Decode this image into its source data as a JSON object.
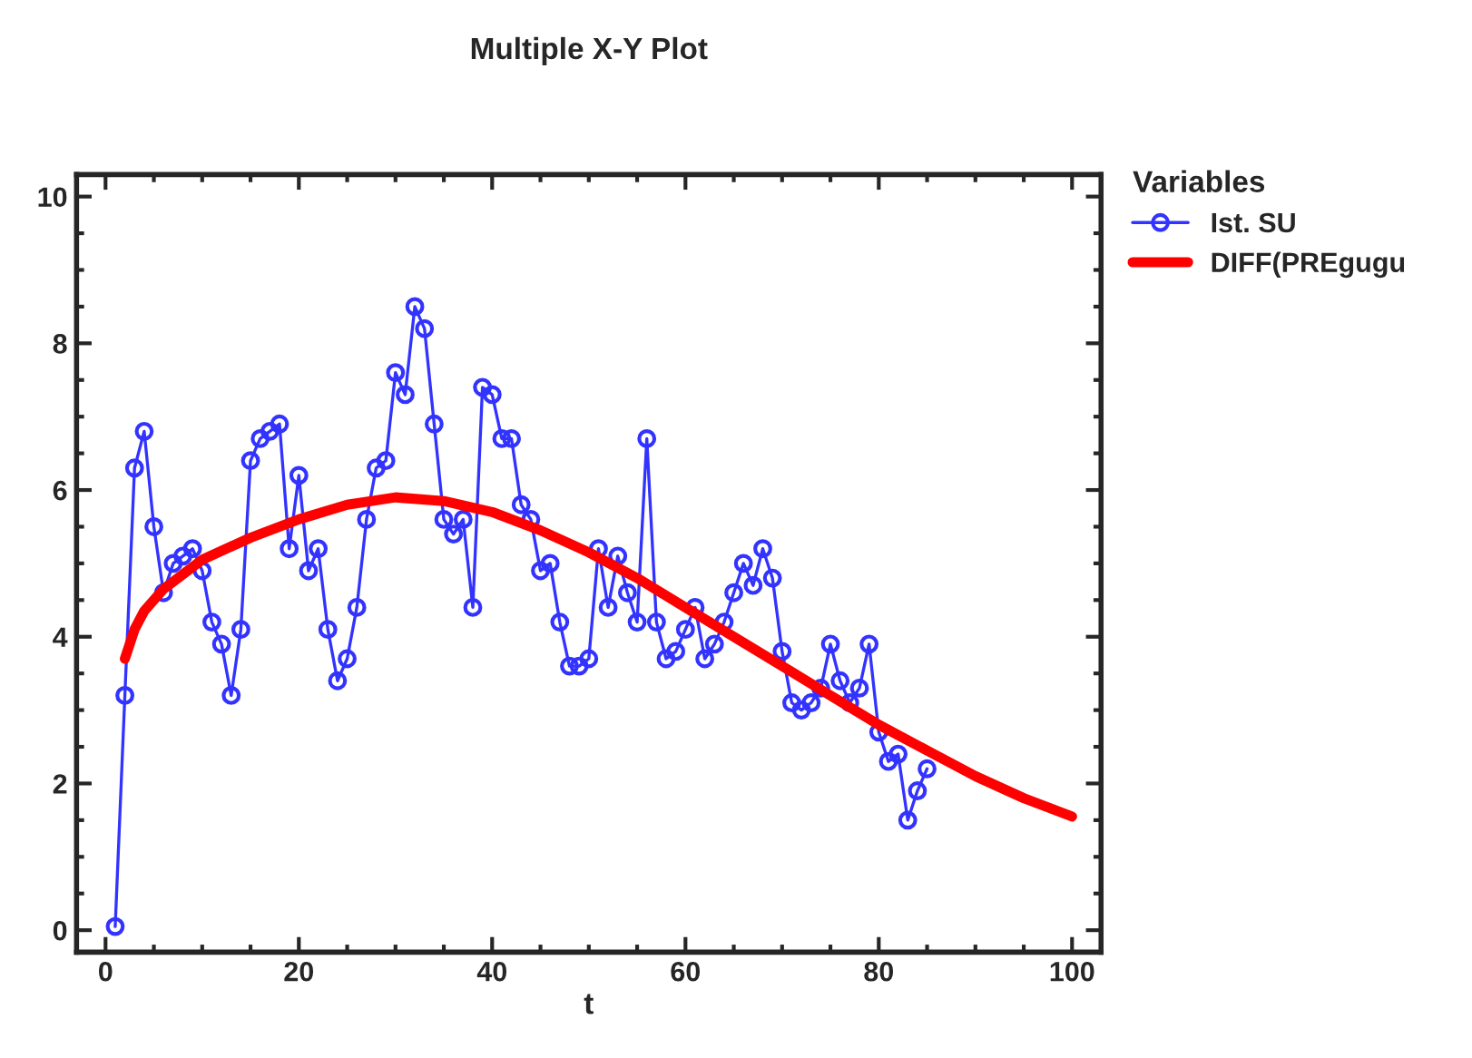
{
  "chart_data": {
    "type": "line",
    "title": "Multiple X-Y Plot",
    "xlabel": "t",
    "legend_title": "Variables",
    "legend": "top right",
    "xlim": [
      -3,
      103
    ],
    "ylim": [
      -0.3,
      10.3
    ],
    "xticks": [
      0,
      20,
      40,
      60,
      80,
      100
    ],
    "yticks": [
      0,
      2,
      4,
      6,
      8,
      10
    ],
    "grid": false,
    "series": [
      {
        "name": "Ist. SU",
        "color": "#3333ff",
        "marker": "circle",
        "x": [
          1,
          2,
          3,
          4,
          5,
          6,
          7,
          8,
          9,
          10,
          11,
          12,
          13,
          14,
          15,
          16,
          17,
          18,
          19,
          20,
          21,
          22,
          23,
          24,
          25,
          26,
          27,
          28,
          29,
          30,
          31,
          32,
          33,
          34,
          35,
          36,
          37,
          38,
          39,
          40,
          41,
          42,
          43,
          44,
          45,
          46,
          47,
          48,
          49,
          50,
          51,
          52,
          53,
          54,
          55,
          56,
          57,
          58,
          59,
          60,
          61,
          62,
          63,
          64,
          65,
          66,
          67,
          68,
          69,
          70,
          71,
          72,
          73,
          74,
          75,
          76,
          77,
          78,
          79,
          80,
          81,
          82,
          83,
          84,
          85
        ],
        "values": [
          0.05,
          3.2,
          6.3,
          6.8,
          5.5,
          4.6,
          5.0,
          5.1,
          5.2,
          4.9,
          4.2,
          3.9,
          3.2,
          4.1,
          6.4,
          6.7,
          6.8,
          6.9,
          5.2,
          6.2,
          4.9,
          5.2,
          4.1,
          3.4,
          3.7,
          4.4,
          5.6,
          6.3,
          6.4,
          7.6,
          7.3,
          8.5,
          8.2,
          6.9,
          5.6,
          5.4,
          5.6,
          4.4,
          7.4,
          7.3,
          6.7,
          6.7,
          5.8,
          5.6,
          4.9,
          5.0,
          4.2,
          3.6,
          3.6,
          3.7,
          5.2,
          4.4,
          5.1,
          4.6,
          4.2,
          6.7,
          4.2,
          3.7,
          3.8,
          4.1,
          4.4,
          3.7,
          3.9,
          4.2,
          4.6,
          5.0,
          4.7,
          5.2,
          4.8,
          3.8,
          3.1,
          3.0,
          3.1,
          3.3,
          3.9,
          3.4,
          3.1,
          3.3,
          3.9,
          2.7,
          2.3,
          2.4,
          1.5,
          1.9,
          2.2
        ]
      },
      {
        "name": "DIFF(PREgugu",
        "color": "#ff0000",
        "marker": "none",
        "x": [
          2,
          3,
          4,
          6,
          8,
          10,
          15,
          20,
          25,
          30,
          35,
          40,
          45,
          50,
          55,
          60,
          65,
          70,
          75,
          80,
          85,
          90,
          95,
          100
        ],
        "values": [
          3.7,
          4.1,
          4.35,
          4.65,
          4.85,
          5.05,
          5.35,
          5.6,
          5.8,
          5.9,
          5.85,
          5.7,
          5.45,
          5.15,
          4.8,
          4.4,
          4.0,
          3.6,
          3.2,
          2.8,
          2.45,
          2.1,
          1.8,
          1.55
        ]
      }
    ]
  }
}
